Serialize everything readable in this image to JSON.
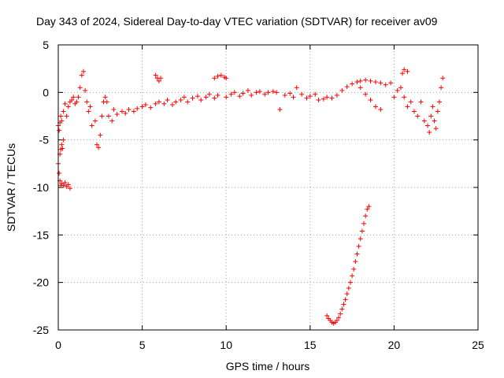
{
  "chart_data": {
    "type": "scatter",
    "title": "Day 343 of 2024, Sidereal Day-to-day VTEC variation (SDTVAR) for receiver av09",
    "xlabel": "GPS time / hours",
    "ylabel": "SDTVAR / TECUs",
    "xlim": [
      0,
      25
    ],
    "ylim": [
      -25,
      5
    ],
    "xticks": [
      0,
      5,
      10,
      15,
      20,
      25
    ],
    "yticks": [
      5,
      0,
      -5,
      -10,
      -15,
      -20,
      -25
    ],
    "grid": true,
    "marker": "plus",
    "series_color": "#ff0000",
    "series": [
      {
        "name": "SDTVAR",
        "points": [
          [
            0.0,
            -3.5
          ],
          [
            0.05,
            -4.0
          ],
          [
            0.1,
            -3.2
          ],
          [
            0.15,
            -2.5
          ],
          [
            0.2,
            -3.0
          ],
          [
            0.0,
            -7.5
          ],
          [
            0.05,
            -8.5
          ],
          [
            0.1,
            -9.3
          ],
          [
            0.15,
            -9.8
          ],
          [
            0.2,
            -9.6
          ],
          [
            0.3,
            -9.8
          ],
          [
            0.4,
            -9.5
          ],
          [
            0.5,
            -9.9
          ],
          [
            0.6,
            -9.7
          ],
          [
            0.7,
            -10.1
          ],
          [
            0.1,
            -6.5
          ],
          [
            0.15,
            -6.0
          ],
          [
            0.2,
            -5.5
          ],
          [
            0.25,
            -5.9
          ],
          [
            0.3,
            -5.0
          ],
          [
            0.3,
            -2.0
          ],
          [
            0.4,
            -1.2
          ],
          [
            0.5,
            -2.5
          ],
          [
            0.6,
            -1.5
          ],
          [
            0.7,
            -1.0
          ],
          [
            0.8,
            -0.8
          ],
          [
            0.9,
            -0.5
          ],
          [
            1.0,
            -1.2
          ],
          [
            1.1,
            -1.0
          ],
          [
            1.2,
            -0.5
          ],
          [
            1.3,
            0.5
          ],
          [
            1.4,
            1.8
          ],
          [
            1.5,
            2.2
          ],
          [
            1.6,
            0.2
          ],
          [
            1.7,
            -1.0
          ],
          [
            1.8,
            -2.0
          ],
          [
            1.9,
            -1.5
          ],
          [
            2.0,
            -3.5
          ],
          [
            2.2,
            -3.0
          ],
          [
            2.3,
            -5.5
          ],
          [
            2.4,
            -5.8
          ],
          [
            2.5,
            -4.5
          ],
          [
            2.6,
            -2.5
          ],
          [
            2.7,
            -1.0
          ],
          [
            2.8,
            -0.5
          ],
          [
            2.9,
            -1.0
          ],
          [
            3.0,
            -2.5
          ],
          [
            3.2,
            -3.0
          ],
          [
            3.3,
            -1.8
          ],
          [
            3.5,
            -2.3
          ],
          [
            3.8,
            -2.0
          ],
          [
            4.0,
            -2.2
          ],
          [
            4.2,
            -1.8
          ],
          [
            4.5,
            -2.0
          ],
          [
            4.7,
            -1.7
          ],
          [
            5.0,
            -1.5
          ],
          [
            5.2,
            -1.3
          ],
          [
            5.5,
            -1.6
          ],
          [
            5.8,
            -1.2
          ],
          [
            5.8,
            1.8
          ],
          [
            5.9,
            1.5
          ],
          [
            6.0,
            1.2
          ],
          [
            6.1,
            1.5
          ],
          [
            6.0,
            -1.0
          ],
          [
            6.3,
            -1.2
          ],
          [
            6.5,
            -0.8
          ],
          [
            6.8,
            -1.3
          ],
          [
            7.0,
            -1.0
          ],
          [
            7.3,
            -0.8
          ],
          [
            7.5,
            -0.5
          ],
          [
            7.7,
            -1.0
          ],
          [
            8.0,
            -0.6
          ],
          [
            8.3,
            -0.4
          ],
          [
            8.5,
            -0.8
          ],
          [
            8.8,
            -0.5
          ],
          [
            9.0,
            -0.2
          ],
          [
            9.3,
            -0.6
          ],
          [
            9.5,
            -0.3
          ],
          [
            9.3,
            1.5
          ],
          [
            9.5,
            1.7
          ],
          [
            9.7,
            1.8
          ],
          [
            9.9,
            1.6
          ],
          [
            10.0,
            1.5
          ],
          [
            10.0,
            -0.5
          ],
          [
            10.3,
            -0.2
          ],
          [
            10.5,
            0.0
          ],
          [
            10.8,
            -0.4
          ],
          [
            11.0,
            -0.1
          ],
          [
            11.3,
            0.2
          ],
          [
            11.5,
            -0.3
          ],
          [
            11.8,
            0.0
          ],
          [
            12.0,
            0.1
          ],
          [
            12.3,
            -0.2
          ],
          [
            12.5,
            0.0
          ],
          [
            12.8,
            0.1
          ],
          [
            13.0,
            0.0
          ],
          [
            13.2,
            -1.8
          ],
          [
            13.5,
            -0.3
          ],
          [
            13.8,
            -0.1
          ],
          [
            14.0,
            -0.5
          ],
          [
            14.2,
            0.5
          ],
          [
            14.5,
            -0.2
          ],
          [
            14.8,
            -0.6
          ],
          [
            15.0,
            -0.4
          ],
          [
            15.3,
            -0.2
          ],
          [
            15.5,
            -0.8
          ],
          [
            15.8,
            -0.7
          ],
          [
            16.0,
            -0.5
          ],
          [
            16.3,
            -0.6
          ],
          [
            16.6,
            -0.3
          ],
          [
            16.9,
            0.2
          ],
          [
            17.2,
            0.6
          ],
          [
            17.5,
            0.9
          ],
          [
            17.8,
            1.1
          ],
          [
            18.0,
            1.2
          ],
          [
            18.3,
            1.3
          ],
          [
            18.6,
            1.2
          ],
          [
            18.9,
            1.1
          ],
          [
            19.2,
            1.0
          ],
          [
            19.5,
            0.8
          ],
          [
            19.8,
            1.0
          ],
          [
            18.0,
            0.5
          ],
          [
            18.3,
            -0.2
          ],
          [
            18.6,
            -0.8
          ],
          [
            18.9,
            -1.5
          ],
          [
            19.2,
            -1.8
          ],
          [
            20.0,
            -0.5
          ],
          [
            20.2,
            0.2
          ],
          [
            20.4,
            0.5
          ],
          [
            20.6,
            -0.5
          ],
          [
            20.8,
            -1.5
          ],
          [
            20.5,
            2.0
          ],
          [
            20.6,
            2.4
          ],
          [
            20.8,
            2.2
          ],
          [
            21.0,
            -1.0
          ],
          [
            21.2,
            -2.0
          ],
          [
            21.4,
            -2.5
          ],
          [
            21.6,
            -1.0
          ],
          [
            21.8,
            -3.0
          ],
          [
            22.0,
            -3.5
          ],
          [
            22.1,
            -4.2
          ],
          [
            22.2,
            -2.5
          ],
          [
            22.3,
            -1.5
          ],
          [
            22.4,
            -3.0
          ],
          [
            22.5,
            -3.8
          ],
          [
            22.6,
            -2.0
          ],
          [
            22.7,
            -1.0
          ],
          [
            22.8,
            0.5
          ],
          [
            22.9,
            1.5
          ],
          [
            16.0,
            -23.5
          ],
          [
            16.1,
            -23.8
          ],
          [
            16.2,
            -24.0
          ],
          [
            16.3,
            -24.2
          ],
          [
            16.4,
            -24.3
          ],
          [
            16.5,
            -24.2
          ],
          [
            16.6,
            -24.0
          ],
          [
            16.7,
            -23.7
          ],
          [
            16.8,
            -23.3
          ],
          [
            16.9,
            -22.8
          ],
          [
            17.0,
            -22.3
          ],
          [
            17.1,
            -21.8
          ],
          [
            17.2,
            -21.2
          ],
          [
            17.3,
            -20.6
          ],
          [
            17.4,
            -20.0
          ],
          [
            17.5,
            -19.3
          ],
          [
            17.6,
            -18.6
          ],
          [
            17.7,
            -17.8
          ],
          [
            17.8,
            -17.0
          ],
          [
            17.9,
            -16.2
          ],
          [
            18.0,
            -15.4
          ],
          [
            18.1,
            -14.6
          ],
          [
            18.2,
            -13.8
          ],
          [
            18.3,
            -13.0
          ],
          [
            18.4,
            -12.3
          ],
          [
            18.5,
            -12.0
          ]
        ]
      }
    ]
  }
}
